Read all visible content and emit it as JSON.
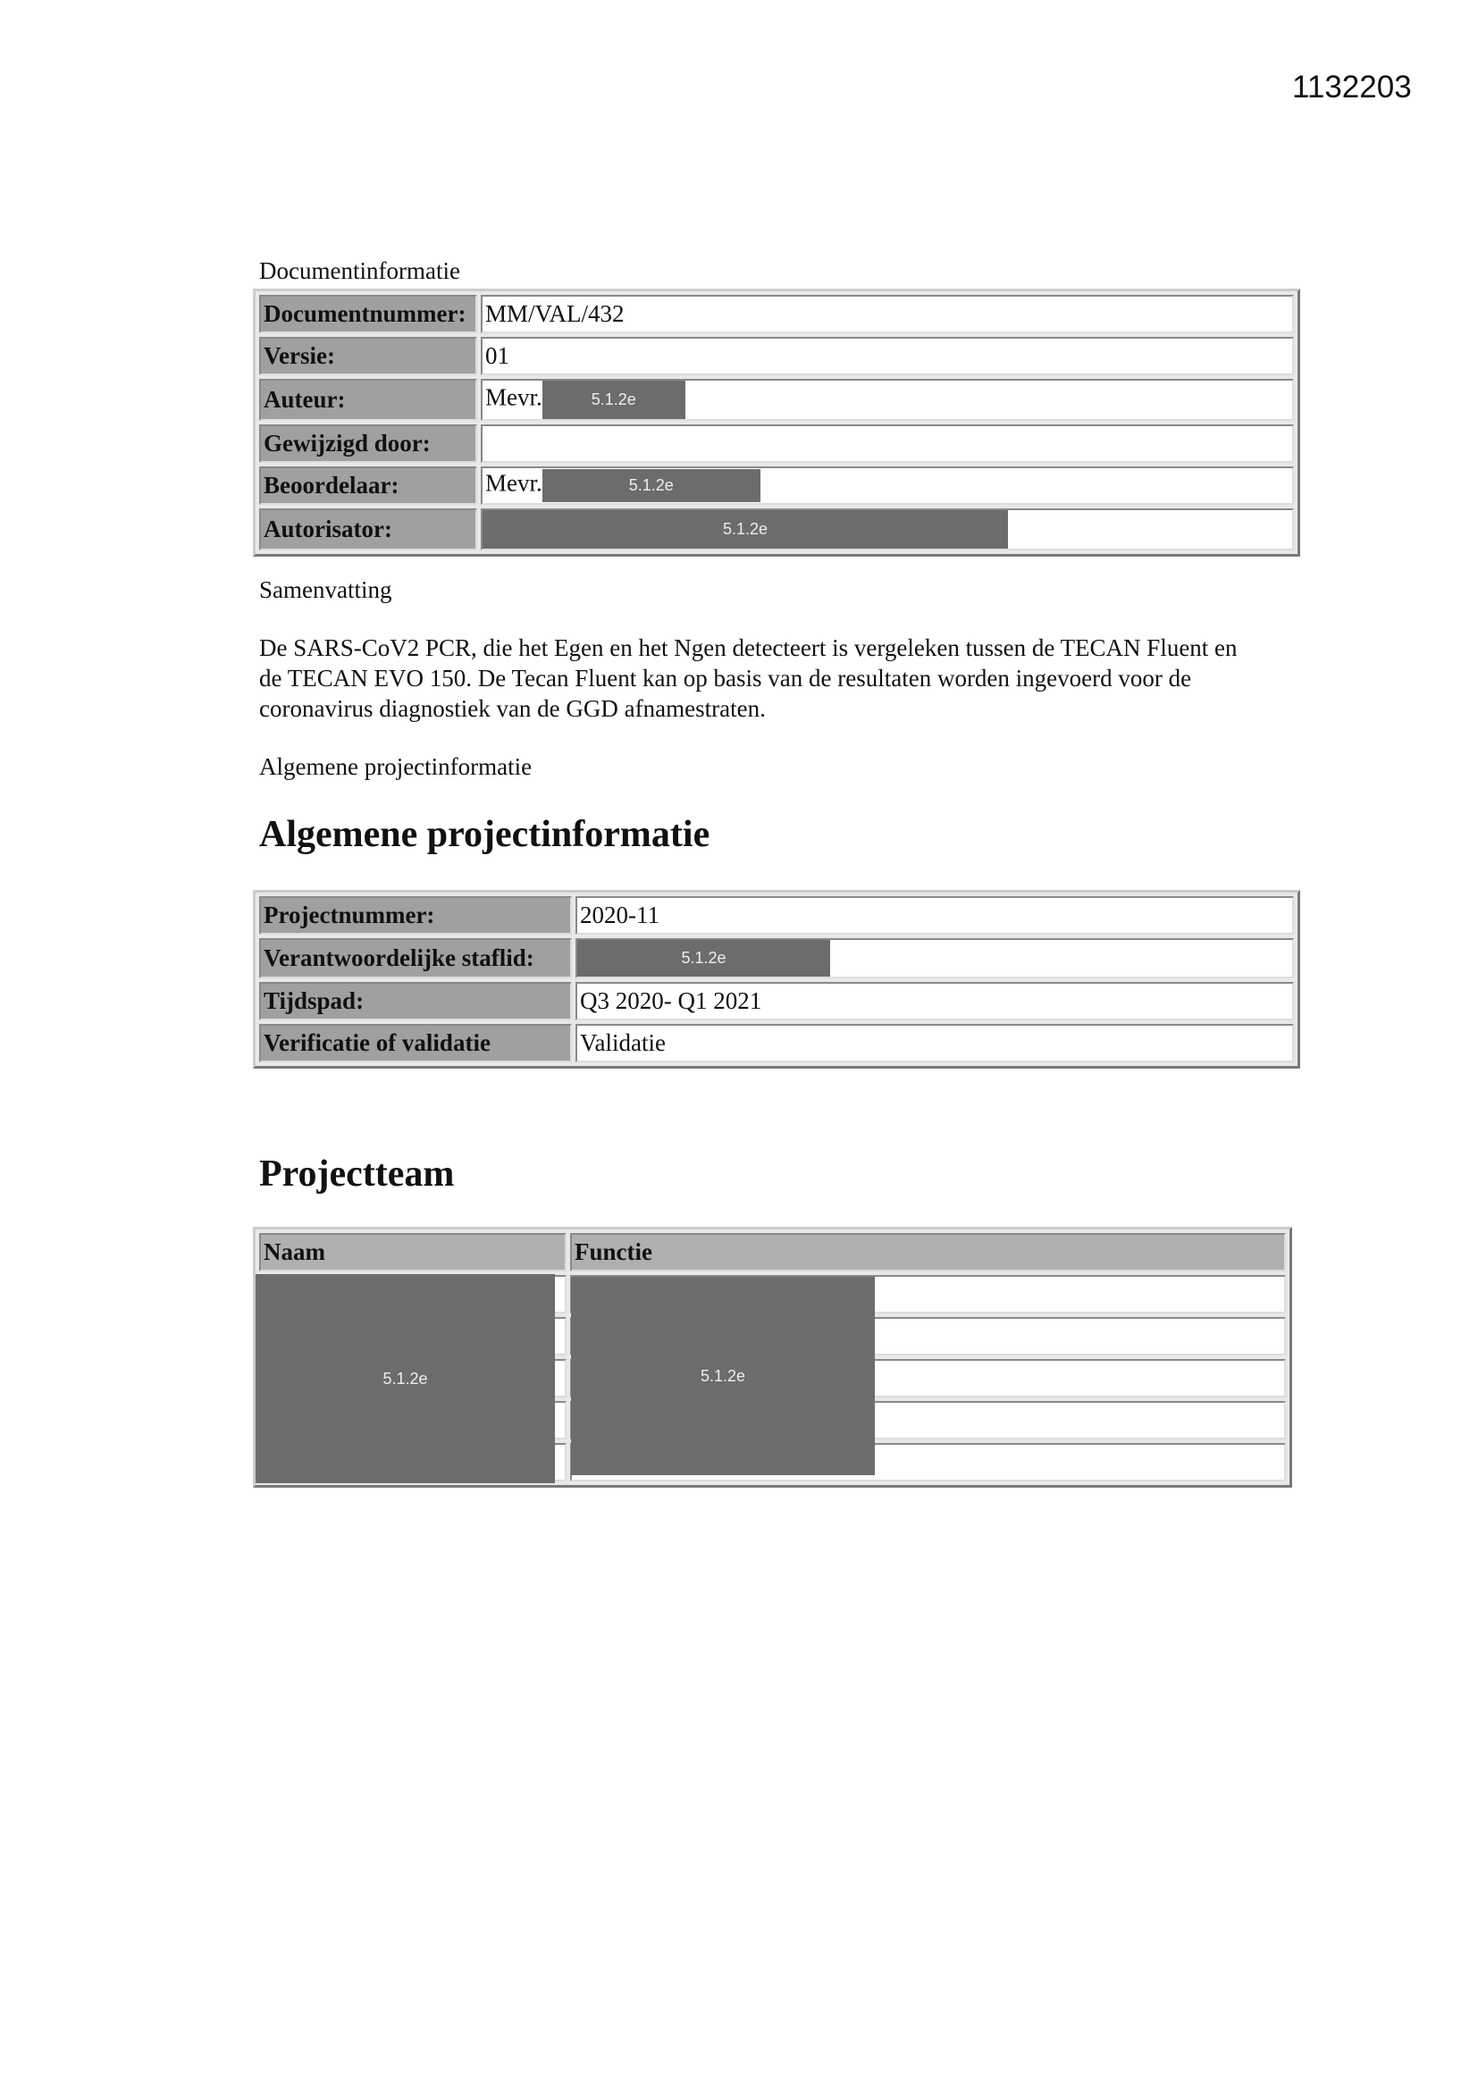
{
  "page_number": "1132203",
  "redaction_label": "5.1.2e",
  "documentinfo": {
    "caption": "Documentinformatie",
    "rows": [
      {
        "label": "Documentnummer:",
        "value": "MM/VAL/432"
      },
      {
        "label": "Versie:",
        "value": "01"
      },
      {
        "label": "Auteur:",
        "value": "Mevr."
      },
      {
        "label": "Gewijzigd door:",
        "value": ""
      },
      {
        "label": "Beoordelaar:",
        "value": "Mevr."
      },
      {
        "label": "Autorisator:",
        "value": ""
      }
    ]
  },
  "summary": {
    "caption": "Samenvatting",
    "text": "De SARS-CoV2 PCR, die het Egen en het Ngen detecteert is vergeleken tussen de TECAN Fluent en de TECAN EVO 150. De Tecan Fluent kan op basis van de resultaten worden ingevoerd voor de coronavirus diagnostiek van de GGD afnamestraten."
  },
  "project": {
    "caption": "Algemene projectinformatie",
    "heading": "Algemene projectinformatie",
    "rows": [
      {
        "label": "Projectnummer:",
        "value": "2020-11"
      },
      {
        "label": "Verantwoordelijke staflid:",
        "value": ""
      },
      {
        "label": "Tijdspad:",
        "value": "Q3 2020- Q1 2021"
      },
      {
        "label": "Verificatie of validatie",
        "value": "Validatie"
      }
    ]
  },
  "team": {
    "heading": "Projectteam",
    "columns": [
      "Naam",
      "Functie"
    ]
  }
}
